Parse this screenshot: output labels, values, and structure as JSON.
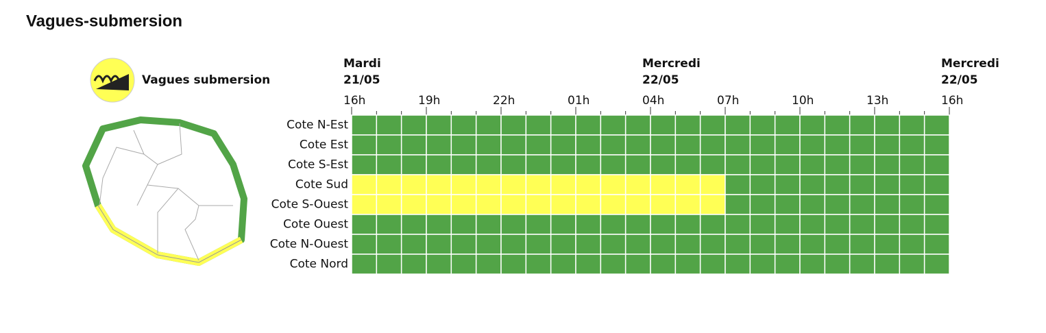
{
  "title": "Vagues-submersion",
  "legend": {
    "label": "Vagues submersion"
  },
  "timeline": {
    "days": [
      {
        "name": "Mardi",
        "date": "21/05"
      },
      {
        "name": "Mercredi",
        "date": "22/05"
      },
      {
        "name": "Mercredi",
        "date": "22/05"
      }
    ],
    "hours": [
      "16h",
      "19h",
      "22h",
      "01h",
      "04h",
      "07h",
      "10h",
      "13h",
      "16h"
    ]
  },
  "rows": [
    {
      "label": "Cote N-Est",
      "cells": [
        "#52a447",
        "#52a447",
        "#52a447",
        "#52a447",
        "#52a447",
        "#52a447",
        "#52a447",
        "#52a447",
        "#52a447",
        "#52a447",
        "#52a447",
        "#52a447",
        "#52a447",
        "#52a447",
        "#52a447",
        "#52a447",
        "#52a447",
        "#52a447",
        "#52a447",
        "#52a447",
        "#52a447",
        "#52a447",
        "#52a447",
        "#52a447"
      ]
    },
    {
      "label": "Cote Est",
      "cells": [
        "#52a447",
        "#52a447",
        "#52a447",
        "#52a447",
        "#52a447",
        "#52a447",
        "#52a447",
        "#52a447",
        "#52a447",
        "#52a447",
        "#52a447",
        "#52a447",
        "#52a447",
        "#52a447",
        "#52a447",
        "#52a447",
        "#52a447",
        "#52a447",
        "#52a447",
        "#52a447",
        "#52a447",
        "#52a447",
        "#52a447",
        "#52a447"
      ]
    },
    {
      "label": "Cote S-Est",
      "cells": [
        "#52a447",
        "#52a447",
        "#52a447",
        "#52a447",
        "#52a447",
        "#52a447",
        "#52a447",
        "#52a447",
        "#52a447",
        "#52a447",
        "#52a447",
        "#52a447",
        "#52a447",
        "#52a447",
        "#52a447",
        "#52a447",
        "#52a447",
        "#52a447",
        "#52a447",
        "#52a447",
        "#52a447",
        "#52a447",
        "#52a447",
        "#52a447"
      ]
    },
    {
      "label": "Cote Sud",
      "cells": [
        "#ffff55",
        "#ffff55",
        "#ffff55",
        "#ffff55",
        "#ffff55",
        "#ffff55",
        "#ffff55",
        "#ffff55",
        "#ffff55",
        "#ffff55",
        "#ffff55",
        "#ffff55",
        "#ffff55",
        "#ffff55",
        "#ffff55",
        "#52a447",
        "#52a447",
        "#52a447",
        "#52a447",
        "#52a447",
        "#52a447",
        "#52a447",
        "#52a447",
        "#52a447"
      ]
    },
    {
      "label": "Cote S-Ouest",
      "cells": [
        "#ffff55",
        "#ffff55",
        "#ffff55",
        "#ffff55",
        "#ffff55",
        "#ffff55",
        "#ffff55",
        "#ffff55",
        "#ffff55",
        "#ffff55",
        "#ffff55",
        "#ffff55",
        "#ffff55",
        "#ffff55",
        "#ffff55",
        "#52a447",
        "#52a447",
        "#52a447",
        "#52a447",
        "#52a447",
        "#52a447",
        "#52a447",
        "#52a447",
        "#52a447"
      ]
    },
    {
      "label": "Cote Ouest",
      "cells": [
        "#52a447",
        "#52a447",
        "#52a447",
        "#52a447",
        "#52a447",
        "#52a447",
        "#52a447",
        "#52a447",
        "#52a447",
        "#52a447",
        "#52a447",
        "#52a447",
        "#52a447",
        "#52a447",
        "#52a447",
        "#52a447",
        "#52a447",
        "#52a447",
        "#52a447",
        "#52a447",
        "#52a447",
        "#52a447",
        "#52a447",
        "#52a447"
      ]
    },
    {
      "label": "Cote N-Ouest",
      "cells": [
        "#52a447",
        "#52a447",
        "#52a447",
        "#52a447",
        "#52a447",
        "#52a447",
        "#52a447",
        "#52a447",
        "#52a447",
        "#52a447",
        "#52a447",
        "#52a447",
        "#52a447",
        "#52a447",
        "#52a447",
        "#52a447",
        "#52a447",
        "#52a447",
        "#52a447",
        "#52a447",
        "#52a447",
        "#52a447",
        "#52a447",
        "#52a447"
      ]
    },
    {
      "label": "Cote Nord",
      "cells": [
        "#52a447",
        "#52a447",
        "#52a447",
        "#52a447",
        "#52a447",
        "#52a447",
        "#52a447",
        "#52a447",
        "#52a447",
        "#52a447",
        "#52a447",
        "#52a447",
        "#52a447",
        "#52a447",
        "#52a447",
        "#52a447",
        "#52a447",
        "#52a447",
        "#52a447",
        "#52a447",
        "#52a447",
        "#52a447",
        "#52a447",
        "#52a447"
      ]
    }
  ]
}
